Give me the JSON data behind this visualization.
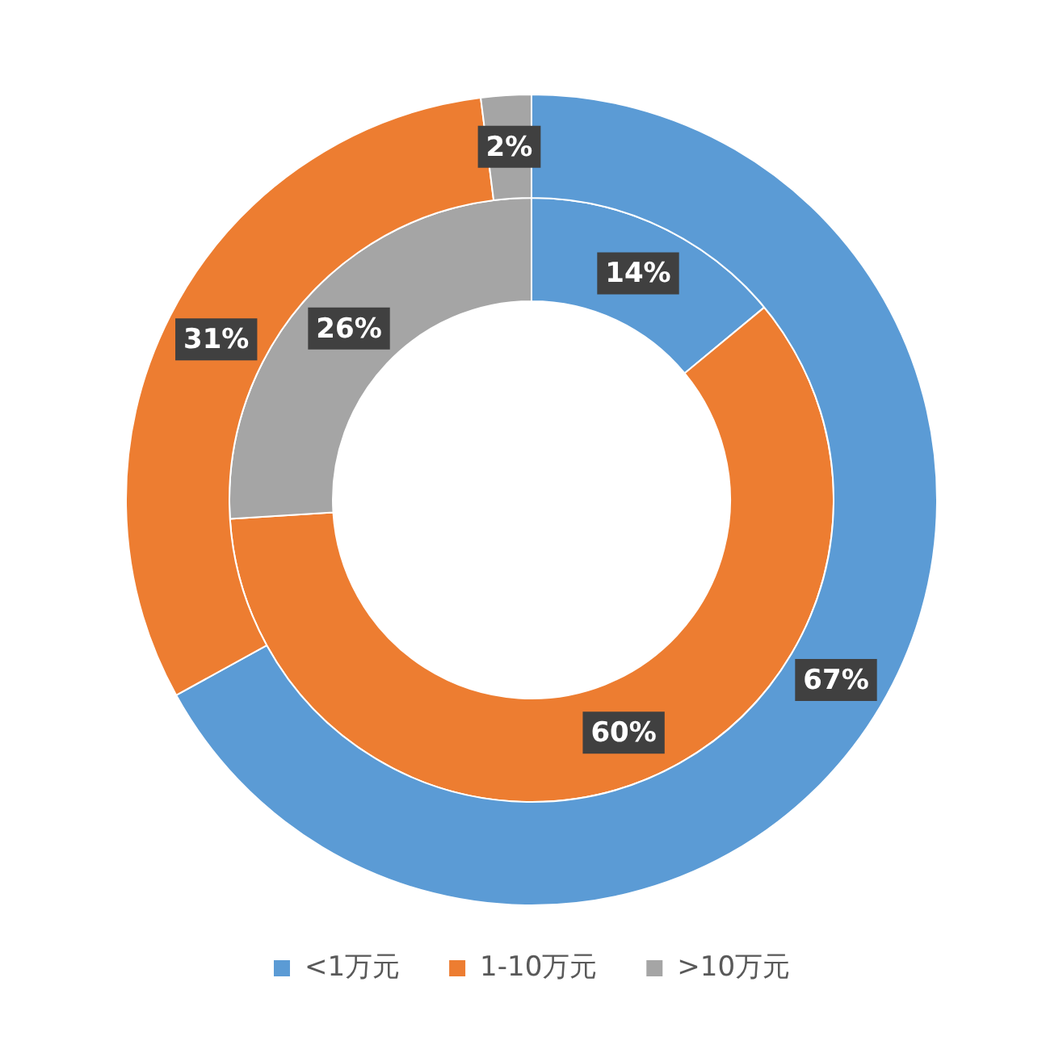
{
  "chart_data": {
    "type": "donut",
    "categories": [
      "<1万元",
      "1-10万元",
      ">10万元"
    ],
    "colors": [
      "#5b9bd5",
      "#ed7d31",
      "#a5a5a5"
    ],
    "series": [
      {
        "values": [
          67,
          31,
          2
        ],
        "value_labels": [
          "67%",
          "31%",
          "2%"
        ]
      },
      {
        "values": [
          14,
          60,
          26
        ],
        "value_labels": [
          "14%",
          "60%",
          "26%"
        ]
      }
    ],
    "legend": "bottom"
  }
}
